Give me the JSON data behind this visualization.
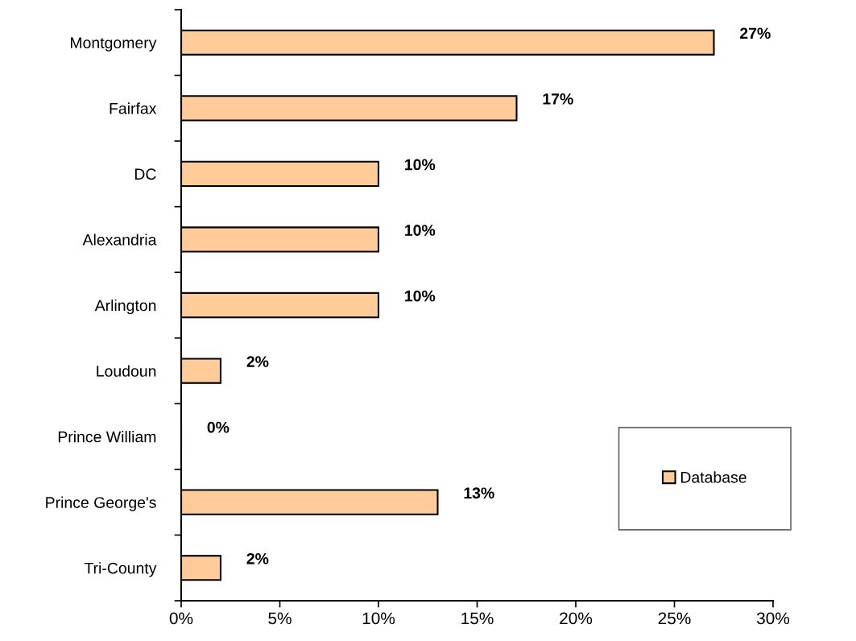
{
  "chart_data": {
    "type": "bar",
    "orientation": "horizontal",
    "categories": [
      "Montgomery",
      "Fairfax",
      "DC",
      "Alexandria",
      "Arlington",
      "Loudoun",
      "Prince William",
      "Prince George's",
      "Tri-County"
    ],
    "series": [
      {
        "name": "Database",
        "color": "#ffcc99",
        "values": [
          27,
          17,
          10,
          10,
          10,
          2,
          0,
          13,
          2
        ],
        "value_labels": [
          "27%",
          "17%",
          "10%",
          "10%",
          "10%",
          "2%",
          "0%",
          "13%",
          "2%"
        ]
      }
    ],
    "xlim": [
      0,
      30
    ],
    "xticks": [
      {
        "value": 0,
        "label": "0%"
      },
      {
        "value": 5,
        "label": "5%"
      },
      {
        "value": 10,
        "label": "10%"
      },
      {
        "value": 15,
        "label": "15%"
      },
      {
        "value": 20,
        "label": "20%"
      },
      {
        "value": 25,
        "label": "25%"
      },
      {
        "value": 30,
        "label": "30%"
      }
    ],
    "grid": false,
    "legend": "lower right"
  }
}
